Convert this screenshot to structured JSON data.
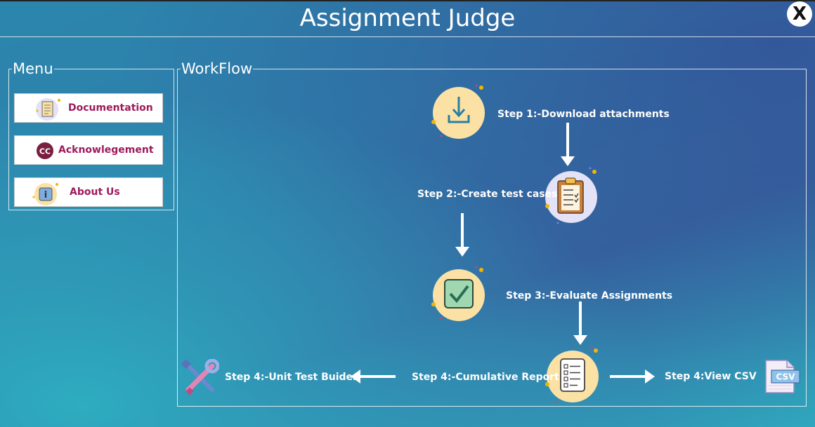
{
  "app": {
    "title": "Assignment Judge",
    "close_glyph": "X"
  },
  "menu": {
    "legend": "Menu",
    "items": [
      {
        "label": "Documentation",
        "icon": "document-icon"
      },
      {
        "label": "Acknowlegement",
        "icon": "cc-icon",
        "icon_text": "CC"
      },
      {
        "label": "About Us",
        "icon": "info-icon",
        "icon_text": "i"
      }
    ]
  },
  "workflow": {
    "legend": "WorkFlow",
    "steps": {
      "download": "Step 1:-Download attachments",
      "create": "Step 2:-Create test cases",
      "evaluate": "Step 3:-Evaluate Assignments",
      "report": "Step 4:-Cumulative Report",
      "unit_test": "Step 4:-Unit Test Buider",
      "csv": "Step 4:View CSV"
    },
    "csv_icon_text": "CSV"
  },
  "colors": {
    "accent_text": "#a0195a",
    "circle_yellow": "#fbe1a4",
    "circle_lavender": "#e3e2f6"
  }
}
